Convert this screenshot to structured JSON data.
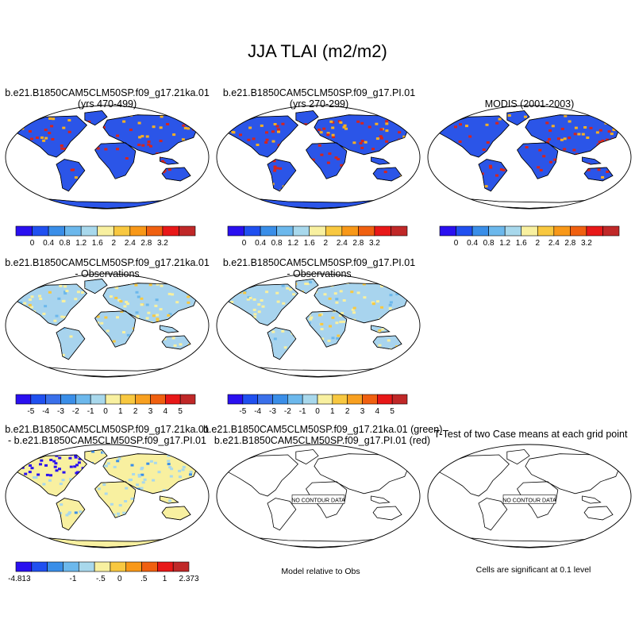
{
  "main_title": "JJA TLAI (m2/m2)",
  "panels": [
    {
      "line1": "b.e21.B1850CAM5CLM50SP.f09_g17.21ka.01",
      "line2": "(yrs 470-499)"
    },
    {
      "line1": "b.e21.B1850CAM5CLM50SP.f09_g17.PI.01",
      "line2": "(yrs 270-299)"
    },
    {
      "line1": "MODIS (2001-2003)",
      "line2": ""
    },
    {
      "line1": "b.e21.B1850CAM5CLM50SP.f09_g17.21ka.01",
      "line2": "- Observations"
    },
    {
      "line1": "b.e21.B1850CAM5CLM50SP.f09_g17.PI.01",
      "line2": "- Observations"
    },
    {
      "line1": "b.e21.B1850CAM5CLM50SP.f09_g17.21ka.01",
      "line2": "- b.e21.B1850CAM5CLM50SP.f09_g17.PI.01"
    },
    {
      "line1": "b.e21.B1850CAM5CLM50SP.f09_g17.21ka.01 (green)",
      "line2": "b.e21.B1850CAM5CLM50SP.f09_g17.PI.01 (red)"
    },
    {
      "line1": "T-Test of two Case means at each grid point",
      "line2": ""
    }
  ],
  "no_contour_text": "NO CONTOUR DATA",
  "notes": {
    "model_relative": "Model relative to Obs",
    "significance": "Cells are significant at 0.1 level"
  },
  "colorbars": {
    "absolute": {
      "colors": [
        "#2a10f0",
        "#2050f0",
        "#3a8ee8",
        "#6cb8ec",
        "#a8d8ec",
        "#f8f0a0",
        "#f8c840",
        "#f89818",
        "#f06010",
        "#e81818",
        "#c02828"
      ],
      "labels": [
        "0",
        "0.4",
        "0.8",
        "1.2",
        "1.6",
        "2",
        "2.4",
        "2.8",
        "3.2"
      ]
    },
    "difference": {
      "colors": [
        "#2a10f0",
        "#2050f0",
        "#3a70ea",
        "#3a8ee8",
        "#6cb8ec",
        "#a8d8ec",
        "#f8f0a0",
        "#f8c840",
        "#f8a020",
        "#f06010",
        "#e81818",
        "#c02828"
      ],
      "labels": [
        "-5",
        "-4",
        "-3",
        "-2",
        "-1",
        "0",
        "1",
        "2",
        "3",
        "4",
        "5"
      ]
    },
    "case_difference": {
      "colors": [
        "#2a10f0",
        "#2050f0",
        "#3a8ee8",
        "#6cb8ec",
        "#a8d8ec",
        "#f8f0a0",
        "#f8c840",
        "#f89818",
        "#f06010",
        "#e81818",
        "#c02828"
      ],
      "labels": [
        "-4.813",
        "-1",
        "-.5",
        "0",
        ".5",
        "1",
        "2.373"
      ]
    }
  },
  "map_styles": {
    "absolute_fill": "#2b55e8",
    "absolute_high": "#d8241c",
    "absolute_mid": "#f8b020",
    "difference_fill": "#a8d4ee",
    "difference_pos": "#f8f0a0",
    "difference_neg": "#3a70ea",
    "case_fill": "#f8f0a0",
    "case_neg": "#2a10f0"
  }
}
